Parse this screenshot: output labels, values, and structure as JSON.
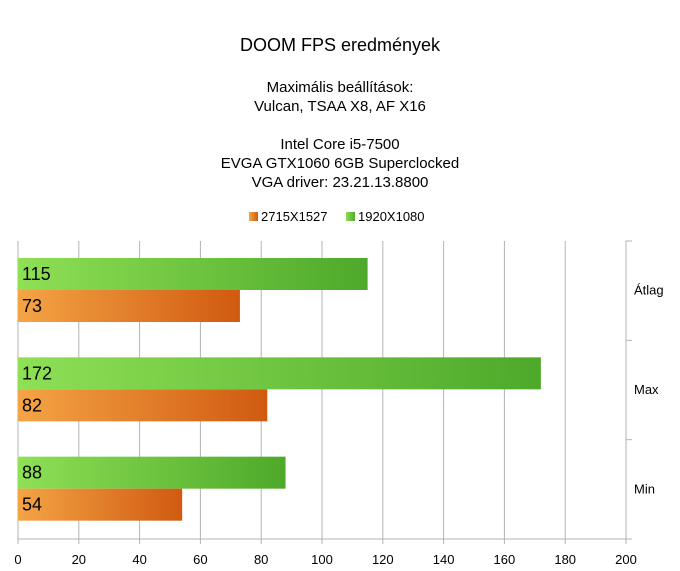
{
  "chart_data": {
    "type": "bar",
    "orientation": "horizontal",
    "title": "DOOM FPS eredmények",
    "subtitle_lines": [
      "Maximális beállítások:",
      "Vulcan, TSAA X8, AF X16",
      "",
      "Intel Core i5-7500",
      "EVGA GTX1060 6GB Superclocked",
      "VGA driver: 23.21.13.8800"
    ],
    "categories": [
      "Átlag",
      "Max",
      "Min"
    ],
    "series": [
      {
        "name": "1920X1080",
        "values": [
          115,
          172,
          88
        ],
        "color": "#4ea92a",
        "color_light": "#8ee055"
      },
      {
        "name": "2715X1527",
        "values": [
          73,
          82,
          54
        ],
        "color": "#d05a10",
        "color_light": "#f4a445"
      }
    ],
    "legend_order": [
      "2715X1527",
      "1920X1080"
    ],
    "legend_position": "top",
    "xlim": [
      0,
      200
    ],
    "xticks": [
      0,
      20,
      40,
      60,
      80,
      100,
      120,
      140,
      160,
      180,
      200
    ],
    "grid": true,
    "category_axis_side": "right"
  }
}
